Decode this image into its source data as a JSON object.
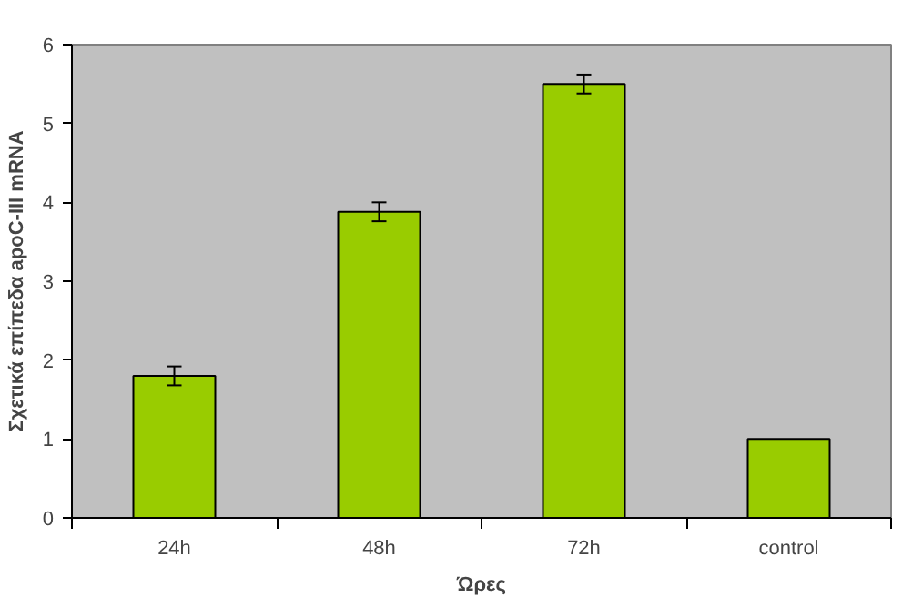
{
  "chart_data": {
    "type": "bar",
    "xlabel": "Ώρες",
    "ylabel": "Σχετικά επίπεδα apoC-III mRNA",
    "categories": [
      "24h",
      "48h",
      "72h",
      "control"
    ],
    "values": [
      1.8,
      3.88,
      5.5,
      1.0
    ],
    "errors": [
      0.12,
      0.12,
      0.12,
      null
    ],
    "color": "#99cc00",
    "ylim": [
      0,
      6
    ],
    "yticks": [
      0,
      1,
      2,
      3,
      4,
      5,
      6
    ],
    "grid": false
  }
}
